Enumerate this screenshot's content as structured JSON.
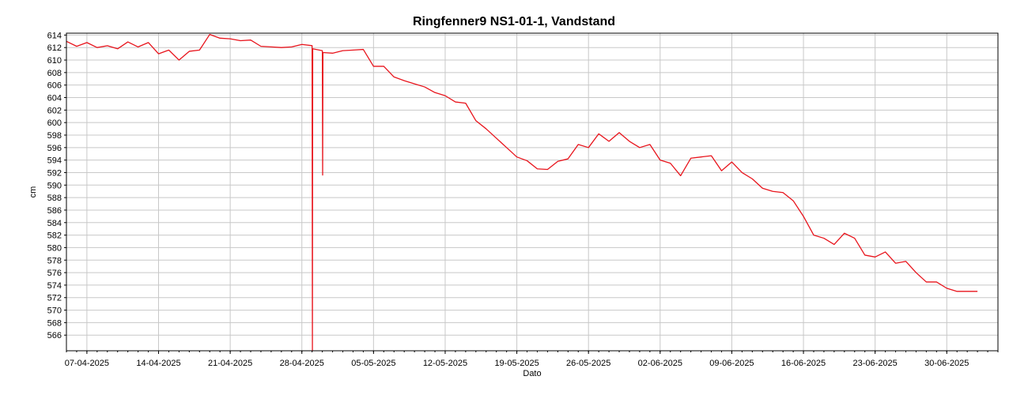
{
  "chart_data": {
    "type": "line",
    "title": "Ringfenner9 NS1-01-1, Vandstand",
    "xlabel": "Dato",
    "ylabel": "cm",
    "ylim": [
      563.5,
      614.3
    ],
    "xlim": [
      "2025-04-05",
      "2025-07-05"
    ],
    "grid": true,
    "y_ticks": [
      566,
      568,
      570,
      572,
      574,
      576,
      578,
      580,
      582,
      584,
      586,
      588,
      590,
      592,
      594,
      596,
      598,
      600,
      602,
      604,
      606,
      608,
      610,
      612,
      614
    ],
    "x_ticks": [
      "07-04-2025",
      "14-04-2025",
      "21-04-2025",
      "28-04-2025",
      "05-05-2025",
      "12-05-2025",
      "19-05-2025",
      "26-05-2025",
      "02-06-2025",
      "09-06-2025",
      "16-06-2025",
      "23-06-2025",
      "30-06-2025"
    ],
    "line_color": "#e8141c",
    "series": [
      {
        "x": [
          "2025-04-05",
          "2025-04-06",
          "2025-04-07",
          "2025-04-08",
          "2025-04-09",
          "2025-04-10",
          "2025-04-11",
          "2025-04-12",
          "2025-04-13",
          "2025-04-14",
          "2025-04-15",
          "2025-04-16",
          "2025-04-17",
          "2025-04-18",
          "2025-04-19",
          "2025-04-20",
          "2025-04-21",
          "2025-04-22",
          "2025-04-23",
          "2025-04-24",
          "2025-04-25",
          "2025-04-26",
          "2025-04-27",
          "2025-04-28",
          "2025-04-29",
          "2025-04-29",
          "2025-04-29",
          "2025-04-30",
          "2025-04-30",
          "2025-04-30",
          "2025-05-01",
          "2025-05-02",
          "2025-05-03",
          "2025-05-04",
          "2025-05-05",
          "2025-05-06",
          "2025-05-07",
          "2025-05-08",
          "2025-05-09",
          "2025-05-10",
          "2025-05-11",
          "2025-05-12",
          "2025-05-13",
          "2025-05-14",
          "2025-05-15",
          "2025-05-16",
          "2025-05-17",
          "2025-05-18",
          "2025-05-19",
          "2025-05-20",
          "2025-05-21",
          "2025-05-22",
          "2025-05-23",
          "2025-05-24",
          "2025-05-25",
          "2025-05-26",
          "2025-05-27",
          "2025-05-28",
          "2025-05-29",
          "2025-05-30",
          "2025-05-31",
          "2025-06-01",
          "2025-06-02",
          "2025-06-03",
          "2025-06-04",
          "2025-06-05",
          "2025-06-06",
          "2025-06-07",
          "2025-06-08",
          "2025-06-09",
          "2025-06-10",
          "2025-06-11",
          "2025-06-12",
          "2025-06-13",
          "2025-06-14",
          "2025-06-15",
          "2025-06-16",
          "2025-06-17",
          "2025-06-18",
          "2025-06-19",
          "2025-06-20",
          "2025-06-21",
          "2025-06-22",
          "2025-06-23",
          "2025-06-24",
          "2025-06-25",
          "2025-06-26",
          "2025-06-27",
          "2025-06-28",
          "2025-06-29",
          "2025-06-30",
          "2025-07-01",
          "2025-07-02",
          "2025-07-03"
        ],
        "y": [
          613.0,
          612.2,
          612.8,
          612.0,
          612.3,
          611.8,
          612.9,
          612.1,
          612.8,
          611.0,
          611.6,
          610.0,
          611.4,
          611.6,
          614.1,
          613.5,
          613.4,
          613.1,
          613.2,
          612.2,
          612.1,
          612.0,
          612.1,
          612.5,
          612.3,
          563.5,
          611.8,
          611.5,
          591.6,
          611.2,
          611.1,
          611.5,
          611.6,
          611.7,
          609.0,
          609.0,
          607.3,
          606.7,
          606.2,
          605.7,
          604.8,
          604.3,
          603.3,
          603.1,
          600.3,
          599.0,
          597.5,
          596.0,
          594.5,
          593.9,
          592.6,
          592.5,
          593.8,
          594.2,
          596.5,
          596.0,
          598.2,
          597.0,
          598.4,
          597.0,
          596.0,
          596.5,
          594.0,
          593.5,
          591.5,
          594.3,
          594.5,
          594.7,
          592.3,
          593.7,
          592.0,
          591.0,
          589.5,
          589.0,
          588.8,
          587.5,
          585.0,
          582.0,
          581.5,
          580.5,
          582.3,
          581.5,
          578.8,
          578.5,
          579.3,
          577.5,
          577.8,
          576.0,
          574.5,
          574.5,
          573.5,
          573.0,
          573.0,
          573.0
        ]
      }
    ]
  }
}
